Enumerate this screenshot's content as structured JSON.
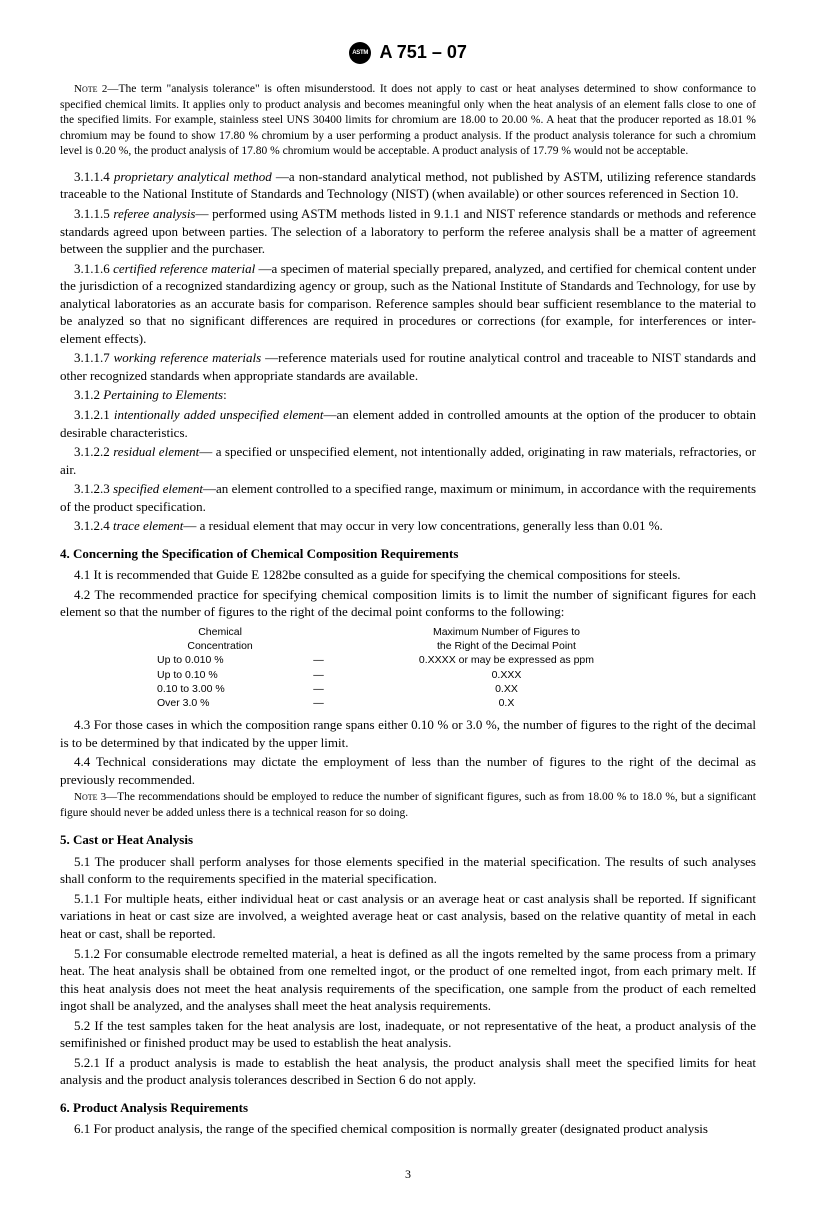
{
  "header": {
    "designation": "A 751 – 07"
  },
  "notes": {
    "n2_label": "Note 2—",
    "n2_text": "The term \"analysis tolerance\" is often misunderstood. It does not apply to cast or heat analyses determined to show conformance to specified chemical limits. It applies only to product analysis and becomes meaningful only when the heat analysis of an element falls close to one of the specified limits. For example, stainless steel UNS 30400 limits for chromium are 18.00 to 20.00 %. A heat that the producer reported as 18.01 % chromium may be found to show 17.80 % chromium by a user performing a product analysis. If the product analysis tolerance for such a chromium level is 0.20 %, the product analysis of 17.80 % chromium would be acceptable. A product analysis of 17.79 % would not be acceptable.",
    "n3_label": "Note 3—",
    "n3_text": "The recommendations should be employed to reduce the number of significant figures, such as from 18.00 % to 18.0 %, but a significant figure should never be added unless there is a technical reason for so doing."
  },
  "defs": {
    "d3114_num": "3.1.1.4 ",
    "d3114_term": "proprietary analytical method ",
    "d3114_text": "—a non-standard analytical method, not published by ASTM, utilizing reference standards traceable to the National Institute of Standards and Technology (NIST) (when available) or other sources referenced in Section 10.",
    "d3115_num": "3.1.1.5 ",
    "d3115_term": "referee analysis",
    "d3115_text": "— performed using ASTM methods listed in 9.1.1 and NIST reference standards or methods and reference standards agreed upon between parties. The selection of a laboratory to perform the referee analysis shall be a matter of agreement between the supplier and the purchaser.",
    "d3116_num": "3.1.1.6 ",
    "d3116_term": "certified reference material ",
    "d3116_text": "—a specimen of material specially prepared, analyzed, and certified for chemical content under the jurisdiction of a recognized standardizing agency or group, such as the National Institute of Standards and Technology, for use by analytical laboratories as an accurate basis for comparison. Reference samples should bear sufficient resemblance to the material to be analyzed so that no significant differences are required in procedures or corrections (for example, for interferences or inter-element effects).",
    "d3117_num": "3.1.1.7 ",
    "d3117_term": "working reference materials ",
    "d3117_text": "—reference materials used for routine analytical control and traceable to NIST standards and other recognized standards when appropriate standards are available.",
    "d312_num": "3.1.2 ",
    "d312_term": "Pertaining to Elements",
    "d312_colon": ":",
    "d3121_num": "3.1.2.1 ",
    "d3121_term": "intentionally added unspecified element",
    "d3121_text": "—an element added in controlled amounts at the option of the producer to obtain desirable characteristics.",
    "d3122_num": "3.1.2.2 ",
    "d3122_term": "residual element",
    "d3122_text": "— a specified or unspecified element, not intentionally added, originating in raw materials, refractories, or air.",
    "d3123_num": "3.1.2.3 ",
    "d3123_term": "specified element",
    "d3123_text": "—an element controlled to a specified range, maximum or minimum, in accordance with the requirements of the product specification.",
    "d3124_num": "3.1.2.4 ",
    "d3124_term": "trace element",
    "d3124_text": "— a residual element that may occur in very low concentrations, generally less than 0.01 %."
  },
  "sec4": {
    "head": "4.  Concerning the Specification of Chemical Composition Requirements",
    "p41": "4.1  It is recommended that Guide E 1282be consulted as a guide for specifying the chemical compositions for steels.",
    "p42": "4.2  The recommended practice for specifying chemical composition limits is to limit the number of significant figures for each element so that the number of figures to the right of the decimal point conforms to the following:",
    "p43": "4.3  For those cases in which the composition range spans either 0.10 % or 3.0 %, the number of figures to the right of the decimal is to be determined by that indicated by the upper limit.",
    "p44": "4.4  Technical considerations may dictate the employment of less than the number of figures to the right of the decimal as previously recommended."
  },
  "table": {
    "head1a": "Chemical",
    "head1b": "Concentration",
    "head2a": "Maximum Number of Figures to",
    "head2b": "the Right of the Decimal Point",
    "r1c1": "Up to 0.010 %",
    "r1c3": "0.XXXX or may be expressed as ppm",
    "r2c1": "Up to 0.10 %",
    "r2c3": "0.XXX",
    "r3c1": "0.10 to 3.00 %",
    "r3c3": "0.XX",
    "r4c1": "Over 3.0 %",
    "r4c3": "0.X",
    "dash": "—"
  },
  "sec5": {
    "head": "5.  Cast or Heat Analysis",
    "p51": "5.1  The producer shall perform analyses for those elements specified in the material specification. The results of such analyses shall conform to the requirements specified in the material specification.",
    "p511": "5.1.1  For multiple heats, either individual heat or cast analysis or an average heat or cast analysis shall be reported. If significant variations in heat or cast size are involved, a weighted average heat or cast analysis, based on the relative quantity of metal in each heat or cast, shall be reported.",
    "p512": "5.1.2  For consumable electrode remelted material, a heat is defined as all the ingots remelted by the same process from a primary heat. The heat analysis shall be obtained from one remelted ingot, or the product of one remelted ingot, from each primary melt. If this heat analysis does not meet the heat analysis requirements of the specification, one sample from the product of each remelted ingot shall be analyzed, and the analyses shall meet the heat analysis requirements.",
    "p52": "5.2  If the test samples taken for the heat analysis are lost, inadequate, or not representative of the heat, a product analysis of the semifinished or finished product may be used to establish the heat analysis.",
    "p521": "5.2.1  If a product analysis is made to establish the heat analysis, the product analysis shall meet the specified limits for heat analysis and the product analysis tolerances described in Section 6 do not apply."
  },
  "sec6": {
    "head": "6.  Product Analysis Requirements",
    "p61": "6.1  For product analysis, the range of the specified chemical composition is normally greater (designated product analysis"
  },
  "page": {
    "number": "3"
  }
}
